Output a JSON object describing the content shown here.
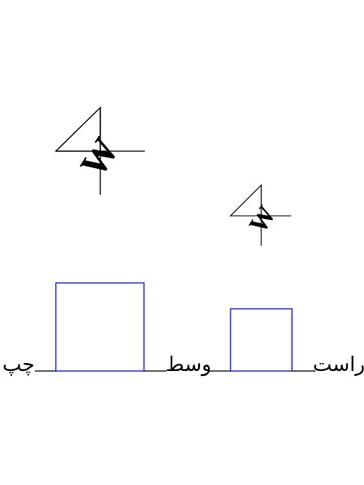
{
  "labels": {
    "left": "چپ",
    "middle": "وسط",
    "right": "راست"
  },
  "glyphs": {
    "large": "W",
    "small": "W"
  },
  "colors": {
    "line": "#000000",
    "box": "#0000cc",
    "background": "#ffffff"
  }
}
